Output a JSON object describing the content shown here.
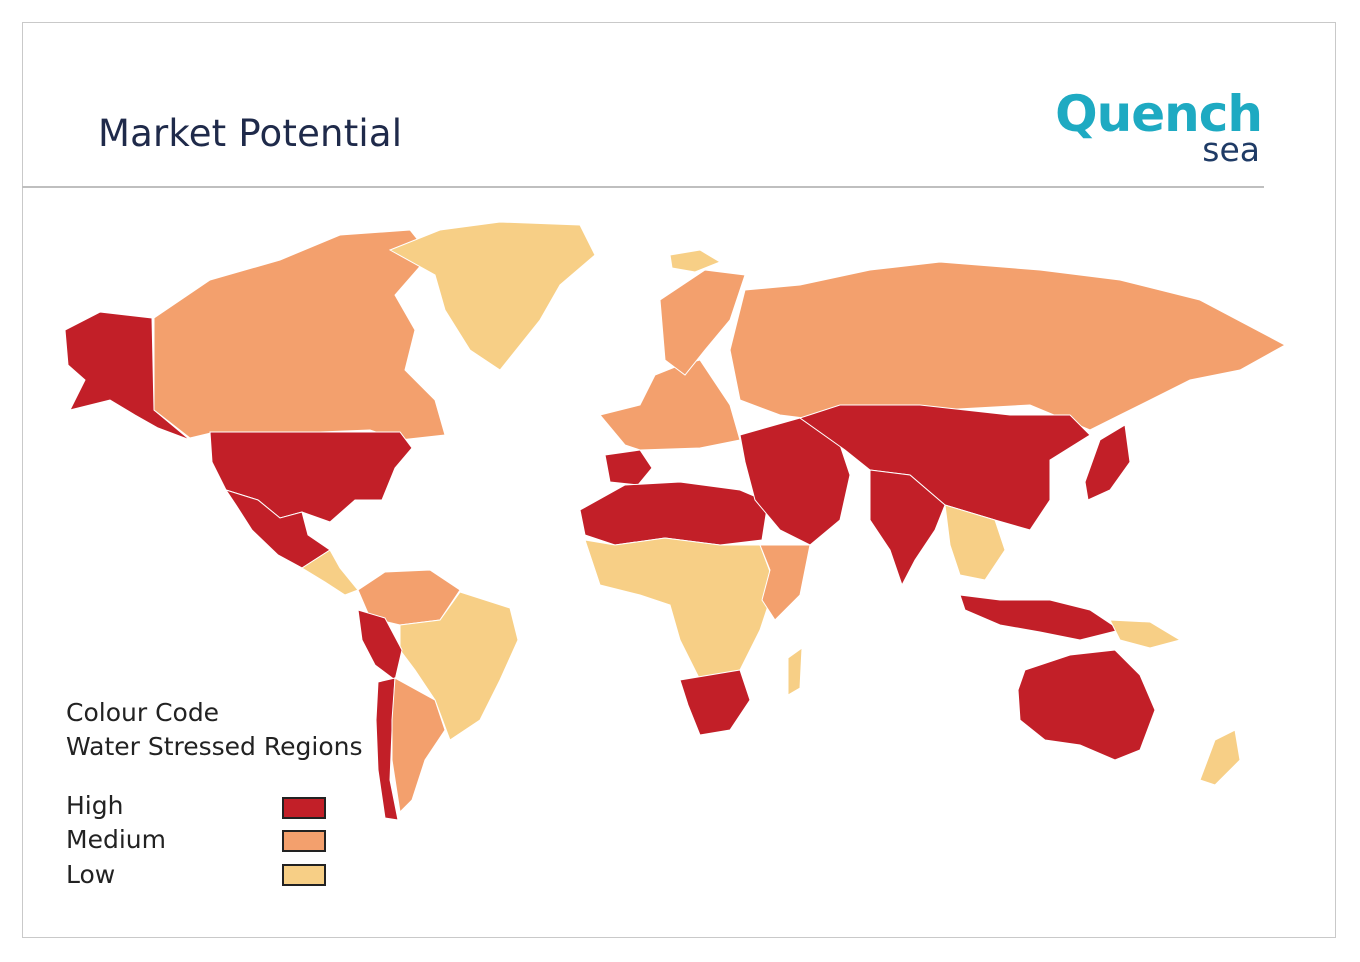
{
  "header": {
    "title": "Market Potential"
  },
  "logo": {
    "main": "Quench",
    "sub": "sea",
    "color_main": "#1eaac2",
    "color_sub": "#1f3b66"
  },
  "legend": {
    "heading": "Colour Code",
    "subheading": "Water Stressed Regions",
    "items": [
      {
        "label": "High",
        "color": "#c21f28"
      },
      {
        "label": "Medium",
        "color": "#f3a06d"
      },
      {
        "label": "Low",
        "color": "#f7cf86"
      }
    ]
  },
  "map": {
    "regions": [
      {
        "name": "Alaska",
        "level": "High"
      },
      {
        "name": "Canada",
        "level": "Medium"
      },
      {
        "name": "Greenland",
        "level": "Low"
      },
      {
        "name": "United States",
        "level": "High"
      },
      {
        "name": "Mexico",
        "level": "High"
      },
      {
        "name": "Central America",
        "level": "Low"
      },
      {
        "name": "Colombia / Venezuela",
        "level": "Medium"
      },
      {
        "name": "Brazil",
        "level": "Low"
      },
      {
        "name": "Peru",
        "level": "High"
      },
      {
        "name": "Chile",
        "level": "High"
      },
      {
        "name": "Argentina",
        "level": "Medium"
      },
      {
        "name": "Iceland",
        "level": "Low"
      },
      {
        "name": "Western Europe",
        "level": "Medium"
      },
      {
        "name": "Iberia",
        "level": "High"
      },
      {
        "name": "Scandinavia",
        "level": "Medium"
      },
      {
        "name": "Russia",
        "level": "Medium"
      },
      {
        "name": "North Africa",
        "level": "High"
      },
      {
        "name": "Sub-Saharan Africa",
        "level": "Low"
      },
      {
        "name": "East Africa",
        "level": "Medium"
      },
      {
        "name": "Southern Africa",
        "level": "High"
      },
      {
        "name": "Madagascar",
        "level": "Low"
      },
      {
        "name": "Middle East",
        "level": "High"
      },
      {
        "name": "Central Asia & China",
        "level": "High"
      },
      {
        "name": "India",
        "level": "High"
      },
      {
        "name": "Southeast Asia",
        "level": "Low"
      },
      {
        "name": "Japan",
        "level": "High"
      },
      {
        "name": "Indonesia",
        "level": "High"
      },
      {
        "name": "Papua New Guinea",
        "level": "Low"
      },
      {
        "name": "Australia",
        "level": "High"
      },
      {
        "name": "New Zealand",
        "level": "Low"
      }
    ]
  }
}
